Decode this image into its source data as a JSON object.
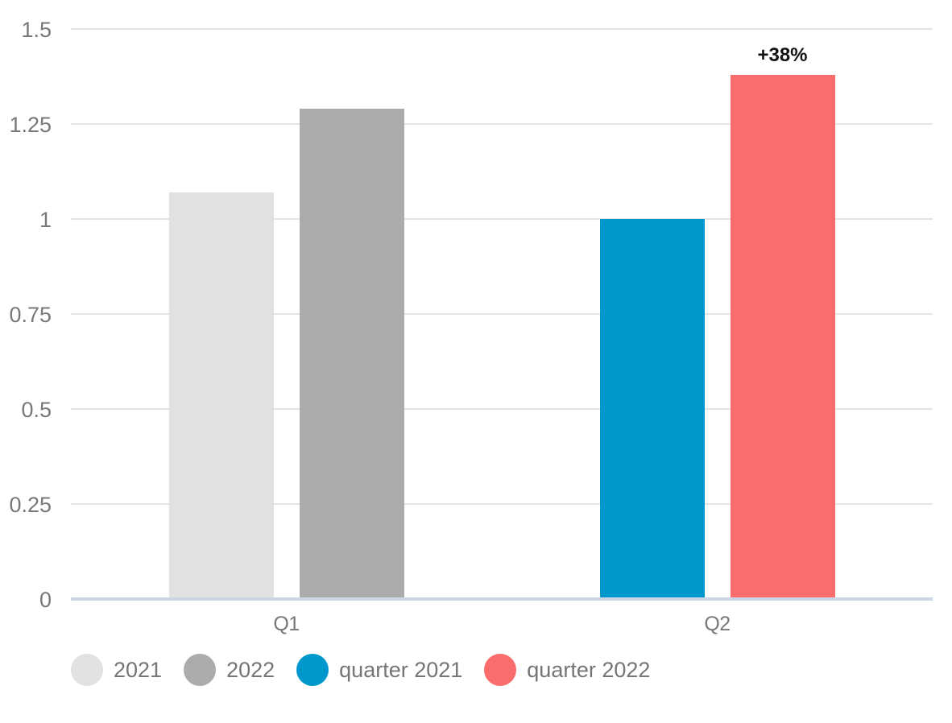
{
  "chart_data": {
    "type": "bar",
    "categories": [
      "Q1",
      "Q2"
    ],
    "series": [
      {
        "name": "2021",
        "color": "#E1E1E1",
        "values": [
          1.07,
          null
        ]
      },
      {
        "name": "2022",
        "color": "#ABABAB",
        "values": [
          1.29,
          null
        ]
      },
      {
        "name": "quarter 2021",
        "color": "#0098CC",
        "values": [
          null,
          1.0
        ]
      },
      {
        "name": "quarter 2022",
        "color": "#FB6C6C",
        "values": [
          null,
          1.38
        ]
      }
    ],
    "annotations": [
      {
        "text": "+38%",
        "category": "Q2",
        "series": "quarter 2022"
      }
    ],
    "title": "",
    "xlabel": "",
    "ylabel": "",
    "ylim": [
      0,
      1.5
    ],
    "yticks": [
      0,
      0.25,
      0.5,
      0.75,
      1,
      1.25,
      1.5
    ],
    "grid": true,
    "legend_position": "bottom",
    "colors": {
      "grid_line": "#E4E4E4",
      "axis_line": "#CDD6E6",
      "tick_text": "#77787B",
      "category_text": "#77787B",
      "legend_text": "#757575",
      "annotation_text": "#111111",
      "background": "#FFFFFF"
    }
  }
}
